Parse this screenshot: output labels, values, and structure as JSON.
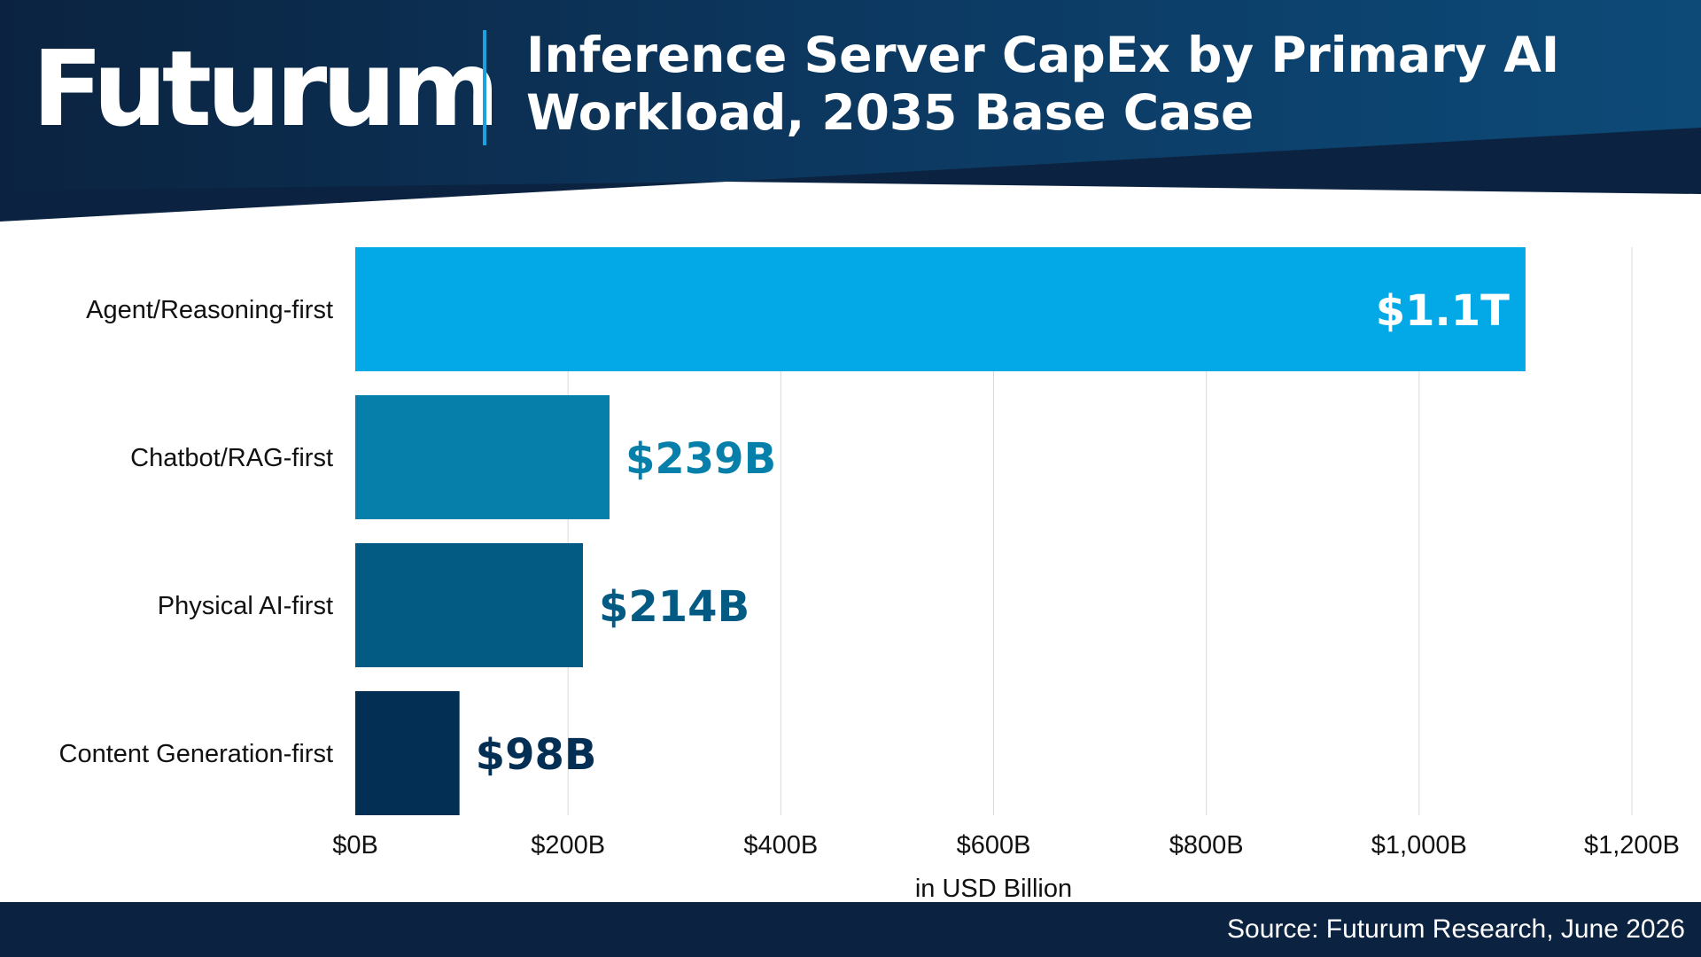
{
  "header": {
    "logo_text": "Futurum",
    "title_line1": "Inference Server CapEx by Primary AI",
    "title_line2": "Workload, 2035 Base Case"
  },
  "footer": {
    "source": "Source: Futurum Research, June 2026"
  },
  "colors": {
    "header_dark": "#0b2340",
    "header_mid": "#0d4a78",
    "accent": "#1aa3e0",
    "footer": "#0b2340",
    "grid": "#d9d9d9",
    "label_text": "#111111"
  },
  "chart_data": {
    "type": "bar",
    "orientation": "horizontal",
    "categories": [
      "Agent/Reasoning-first",
      "Chatbot/RAG-first",
      "Physical AI-first",
      "Content Generation-first"
    ],
    "values": [
      1100,
      239,
      214,
      98
    ],
    "data_labels": [
      "$1.1T",
      "$239B",
      "$214B",
      "$98B"
    ],
    "bar_colors": [
      "#03a9e6",
      "#0680aa",
      "#035a82",
      "#042f54"
    ],
    "label_colors": [
      "#ffffff",
      "#0680aa",
      "#035a82",
      "#042f54"
    ],
    "xlabel": "in USD Billion",
    "xlim": [
      0,
      1200
    ],
    "x_ticks": [
      0,
      200,
      400,
      600,
      800,
      1000,
      1200
    ],
    "x_tick_labels": [
      "$0B",
      "$200B",
      "$400B",
      "$600B",
      "$800B",
      "$1,000B",
      "$1,200B"
    ],
    "grid": true,
    "legend": "none"
  }
}
